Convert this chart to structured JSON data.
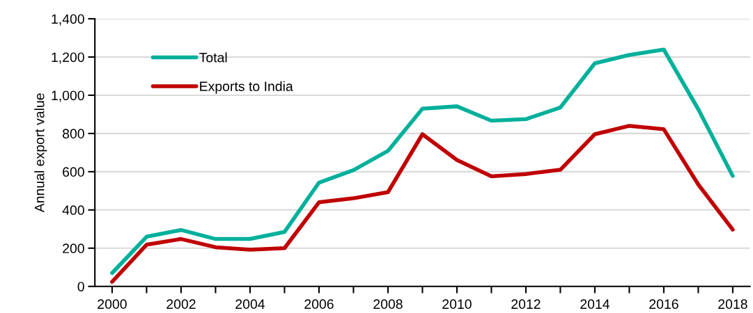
{
  "chart_data": {
    "type": "line",
    "ylabel": "Annual export value",
    "x": [
      2000,
      2001,
      2002,
      2003,
      2004,
      2005,
      2006,
      2007,
      2008,
      2009,
      2010,
      2011,
      2012,
      2013,
      2014,
      2015,
      2016,
      2017,
      2018
    ],
    "series": [
      {
        "name": "Total",
        "color": "#00b09b",
        "values": [
          70,
          260,
          295,
          248,
          248,
          285,
          543,
          608,
          709,
          930,
          942,
          867,
          875,
          936,
          1167,
          1211,
          1239,
          927,
          578
        ]
      },
      {
        "name": "Exports to India",
        "color": "#c00000",
        "values": [
          24,
          218,
          248,
          205,
          192,
          200,
          440,
          461,
          493,
          796,
          661,
          576,
          588,
          610,
          796,
          840,
          822,
          533,
          297
        ]
      }
    ],
    "xlim": [
      1999.5,
      2018.5
    ],
    "xticks": [
      2000,
      {
        "value": 2001,
        "label": null
      },
      2002,
      {
        "value": 2003,
        "label": null
      },
      2004,
      {
        "value": 2005,
        "label": null
      },
      2006,
      {
        "value": 2007,
        "label": null
      },
      2008,
      {
        "value": 2009,
        "label": null
      },
      2010,
      {
        "value": 2011,
        "label": null
      },
      2012,
      {
        "value": 2013,
        "label": null
      },
      2014,
      {
        "value": 2015,
        "label": null
      },
      2016,
      {
        "value": 2017,
        "label": null
      },
      2018
    ],
    "ylim": [
      0,
      1400
    ],
    "yticks": [
      0,
      200,
      400,
      600,
      800,
      {
        "value": 1000,
        "label": "1,000"
      },
      {
        "value": 1200,
        "label": "1,200"
      },
      {
        "value": 1400,
        "label": "1,400"
      }
    ],
    "grid": "y",
    "legend": "top left",
    "marker": "none",
    "line_style": "solid"
  }
}
